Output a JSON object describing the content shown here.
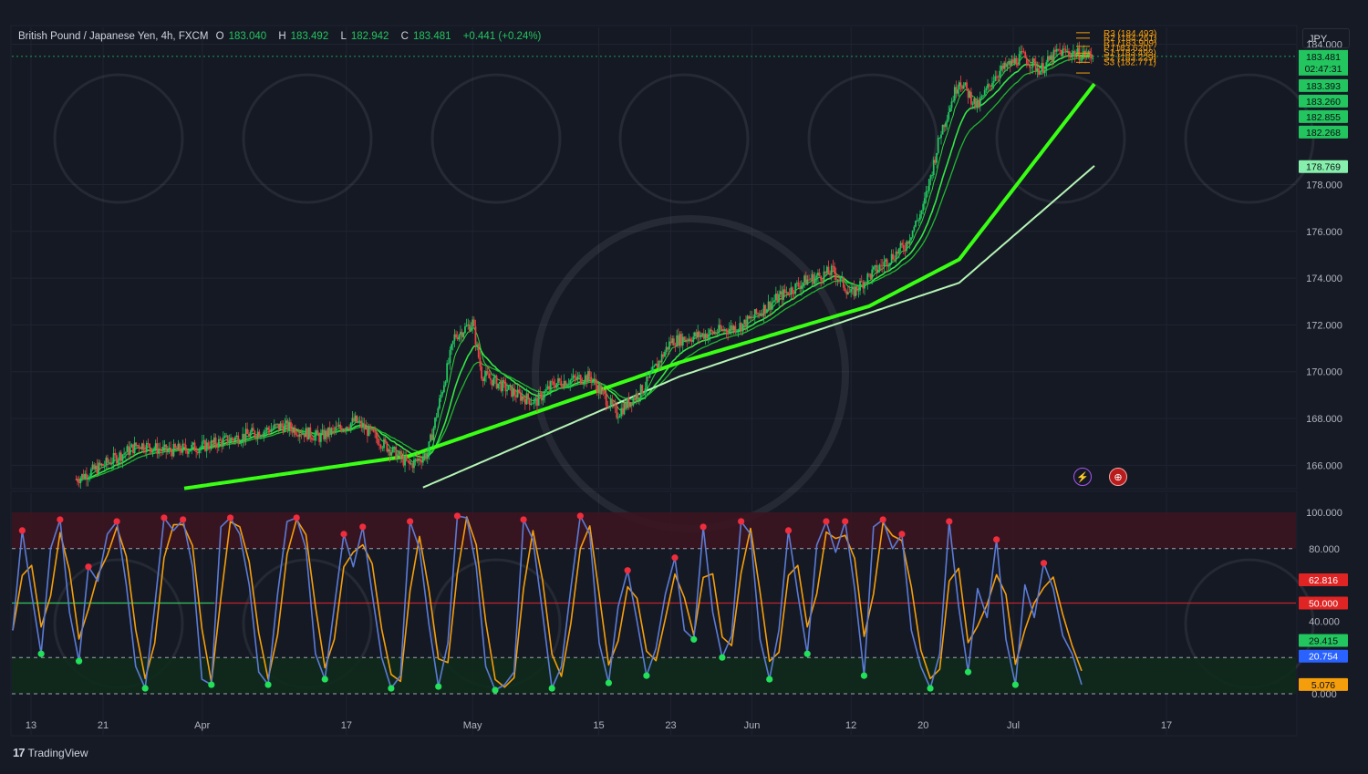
{
  "header": {
    "symbol": "British Pound / Japanese Yen, 4h, FXCM",
    "open_label": "O",
    "open": "183.040",
    "high_label": "H",
    "high": "183.492",
    "low_label": "L",
    "low": "182.942",
    "close_label": "C",
    "close": "183.481",
    "change": "+0.441 (+0.24%)"
  },
  "currency_button": "JPY",
  "footer": {
    "brand": "TradingView",
    "logo": "17"
  },
  "events": {
    "flash_icon": "⚡",
    "flag_icon": "⊕"
  },
  "colors": {
    "background": "#161a25",
    "candle_up": "#22c55e",
    "candle_down": "#ef4444",
    "ema_bright": "#39ff14",
    "ema_slow": "#b5f5b5",
    "stoch_k": "#5b7bd5",
    "stoch_d": "#f59e0b",
    "overbought": "#ef4444",
    "oversold": "#22c55e"
  },
  "chart_data": [
    {
      "type": "candlestick",
      "title": "British Pound / Japanese Yen, 4h, FXCM",
      "ylim": [
        165.0,
        184.8
      ],
      "y_ticks": [
        "184.000",
        "178.000",
        "176.000",
        "174.000",
        "172.000",
        "170.000",
        "168.000",
        "166.000"
      ],
      "x_ticks": [
        "13",
        "21",
        "Apr",
        "17",
        "May",
        "15",
        "23",
        "Jun",
        "12",
        "20",
        "Jul",
        "17"
      ],
      "last_price": "183.481",
      "countdown": "02:47:31",
      "price_labels": [
        {
          "text": "183.393",
          "value": 183.393,
          "color": "#22c55e"
        },
        {
          "text": "183.260",
          "value": 183.26,
          "color": "#22c55e"
        },
        {
          "text": "182.855",
          "value": 182.855,
          "color": "#22c55e"
        },
        {
          "text": "182.268",
          "value": 182.268,
          "color": "#22c55e"
        },
        {
          "text": "178.769",
          "value": 178.769,
          "color": "#86efac"
        }
      ],
      "pivots": [
        {
          "text": "R3 (184.493)",
          "value": 184.493
        },
        {
          "text": "R2 (184.261)",
          "value": 184.261
        },
        {
          "text": "R1 (183.909)",
          "value": 183.909
        },
        {
          "text": "P (183.620)",
          "value": 183.62
        },
        {
          "text": "S1 (183.493)",
          "value": 183.493
        },
        {
          "text": "S2 (183.229)",
          "value": 183.229
        },
        {
          "text": "S3 (182.771)",
          "value": 182.771
        }
      ],
      "close_path": [
        {
          "x": "Mar 18",
          "y": 165.4
        },
        {
          "x": "Mar 21",
          "y": 166.0
        },
        {
          "x": "Mar 25",
          "y": 166.9
        },
        {
          "x": "Mar 28",
          "y": 166.6
        },
        {
          "x": "Apr 1",
          "y": 166.8
        },
        {
          "x": "Apr 5",
          "y": 167.2
        },
        {
          "x": "Apr 10",
          "y": 167.7
        },
        {
          "x": "Apr 14",
          "y": 167.2
        },
        {
          "x": "Apr 18",
          "y": 167.9
        },
        {
          "x": "Apr 24",
          "y": 166.0
        },
        {
          "x": "Apr 26",
          "y": 166.5
        },
        {
          "x": "Apr 29",
          "y": 171.5
        },
        {
          "x": "May 1",
          "y": 172.1
        },
        {
          "x": "May 2",
          "y": 169.9
        },
        {
          "x": "May 6",
          "y": 169.0
        },
        {
          "x": "May 8",
          "y": 168.7
        },
        {
          "x": "May 10",
          "y": 169.5
        },
        {
          "x": "May 14",
          "y": 169.8
        },
        {
          "x": "May 17",
          "y": 168.2
        },
        {
          "x": "May 20",
          "y": 169.3
        },
        {
          "x": "May 23",
          "y": 171.3
        },
        {
          "x": "May 28",
          "y": 171.7
        },
        {
          "x": "May 31",
          "y": 172.0
        },
        {
          "x": "Jun 4",
          "y": 173.2
        },
        {
          "x": "Jun 7",
          "y": 173.9
        },
        {
          "x": "Jun 10",
          "y": 174.3
        },
        {
          "x": "Jun 12",
          "y": 173.3
        },
        {
          "x": "Jun 14",
          "y": 174.1
        },
        {
          "x": "Jun 18",
          "y": 175.4
        },
        {
          "x": "Jun 20",
          "y": 177.0
        },
        {
          "x": "Jun 22",
          "y": 180.3
        },
        {
          "x": "Jun 24",
          "y": 182.5
        },
        {
          "x": "Jun 26",
          "y": 181.3
        },
        {
          "x": "Jun 28",
          "y": 182.7
        },
        {
          "x": "Jul 1",
          "y": 183.5
        },
        {
          "x": "Jul 3",
          "y": 182.9
        },
        {
          "x": "Jul 5",
          "y": 183.7
        },
        {
          "x": "Jul 9",
          "y": 183.5
        }
      ],
      "ma_slow": [
        {
          "x": "Apr 24",
          "y": 164.8
        },
        {
          "x": "May 24",
          "y": 169.8
        },
        {
          "x": "Jun 24",
          "y": 173.8
        },
        {
          "x": "Jul 9",
          "y": 178.8
        }
      ],
      "ma_mid": [
        {
          "x": "Mar 28",
          "y": 164.9
        },
        {
          "x": "Apr 24",
          "y": 166.4
        },
        {
          "x": "May 24",
          "y": 170.4
        },
        {
          "x": "Jun 14",
          "y": 172.8
        },
        {
          "x": "Jun 24",
          "y": 174.8
        },
        {
          "x": "Jul 9",
          "y": 182.3
        }
      ]
    },
    {
      "type": "line",
      "title": "Stochastic",
      "ylim": [
        0,
        100
      ],
      "y_ticks": [
        "100.000",
        "80.000",
        "40.000",
        "0.000"
      ],
      "levels": [
        {
          "value": 80,
          "style": "dashed"
        },
        {
          "value": 50,
          "style": "solid-red"
        },
        {
          "value": 20,
          "style": "dashed"
        },
        {
          "value": 0,
          "style": "dashed"
        }
      ],
      "value_labels": [
        {
          "text": "62.816",
          "value": 62.816,
          "color": "#e02424"
        },
        {
          "text": "50.000",
          "value": 50.0,
          "color": "#e02424"
        },
        {
          "text": "29.415",
          "value": 29.415,
          "color": "#22c55e"
        },
        {
          "text": "20.754",
          "value": 20.754,
          "color": "#2962ff"
        },
        {
          "text": "5.076",
          "value": 5.076,
          "color": "#f59e0b"
        }
      ],
      "series": [
        {
          "name": "",
          "values": [
            35,
            90,
            55,
            22,
            80,
            96,
            45,
            18,
            70,
            62,
            88,
            95,
            60,
            15,
            3,
            48,
            97,
            90,
            96,
            70,
            8,
            5,
            92,
            97,
            88,
            60,
            12,
            5,
            55,
            95,
            97,
            80,
            22,
            8,
            48,
            88,
            70,
            92,
            55,
            20,
            3,
            10,
            95,
            80,
            38,
            4,
            28,
            98,
            97,
            70,
            15,
            2,
            5,
            12,
            96,
            85,
            45,
            3,
            15,
            58,
            98,
            88,
            28,
            6,
            48,
            68,
            40,
            10,
            25,
            55,
            75,
            35,
            30,
            92,
            45,
            20,
            32,
            95,
            88,
            30,
            8,
            35,
            90,
            55,
            22,
            82,
            95,
            78,
            95,
            58,
            10,
            92,
            96,
            80,
            88,
            35,
            15,
            3,
            22,
            95,
            48,
            12,
            58,
            42,
            85,
            30,
            5,
            60,
            42,
            72,
            58,
            32,
            22,
            5
          ]
        }
      ]
    }
  ]
}
